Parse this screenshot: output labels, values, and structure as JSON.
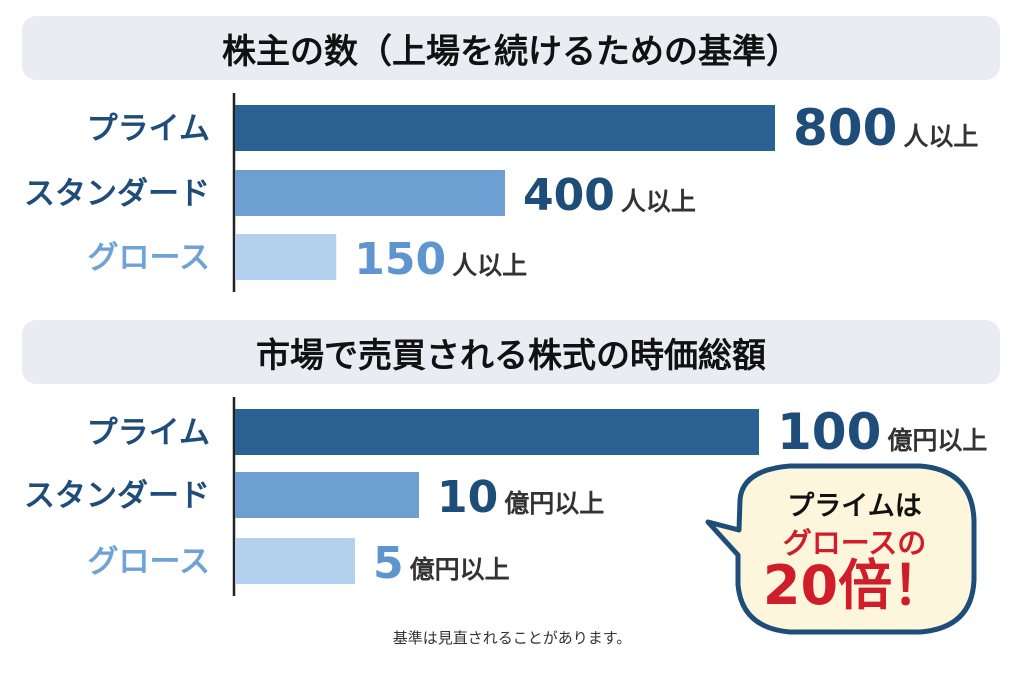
{
  "colors": {
    "prime": "#2a6294",
    "standard": "#6d9fd3",
    "growth": "#b3d1ee",
    "label_prime": "#1f4d7a",
    "label_standard": "#1f4d7a",
    "label_growth": "#6fa2d5",
    "unit_text": "#333333",
    "bubble_fill": "#fdf6dc",
    "bubble_stroke": "#1f4d7a",
    "accent_red": "#d01d2a"
  },
  "chart_data": [
    {
      "type": "bar",
      "title": "株主の数（上場を続けるための基準）",
      "categories": [
        "プライム",
        "スタンダード",
        "グロース"
      ],
      "values": [
        800,
        400,
        150
      ],
      "value_labels": [
        "800",
        "400",
        "150"
      ],
      "unit": "人以上"
    },
    {
      "type": "bar",
      "title": "市場で売買される株式の時価総額",
      "categories": [
        "プライム",
        "スタンダード",
        "グロース"
      ],
      "values": [
        100,
        10,
        5
      ],
      "value_labels": [
        "100",
        "10",
        "5"
      ],
      "unit": "億円以上"
    }
  ],
  "callout": {
    "line1": "プライムは",
    "line2": "グロースの",
    "line3": "20倍！"
  },
  "footnote": "基準は見直されることがあります。"
}
